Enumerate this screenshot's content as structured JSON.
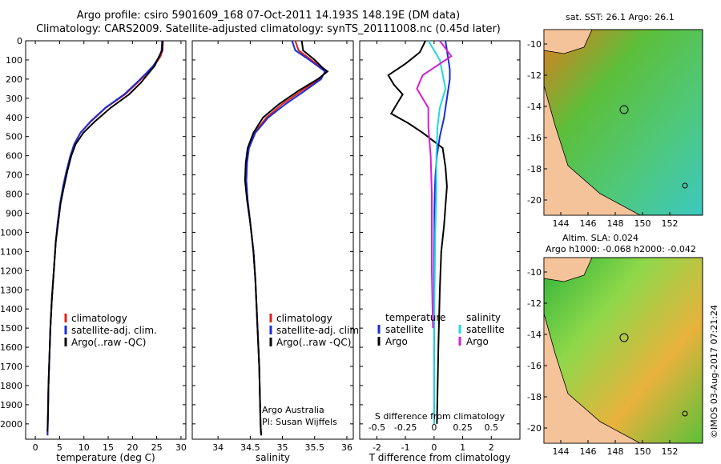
{
  "header": {
    "line1": "Argo profile: csiro 5901609_168 07-Oct-2011 14.193S 148.19E (DM data)",
    "line2": "Climatology: CARS2009. Satellite-adjusted climatology: synTS_20111008.nc (0.45d later)"
  },
  "colors": {
    "climatology": "#e0201a",
    "satellite": "#1c2bd8",
    "argo": "#000000",
    "satellite_diff": "#22d8e0",
    "argo_diff": "#d41fd4"
  },
  "chart_data": [
    {
      "type": "line",
      "id": "temperature",
      "xlabel": "temperature (deg C)",
      "ylabel": "",
      "xlim": [
        -2,
        31
      ],
      "ylim": [
        2080,
        0
      ],
      "xticks": [
        0,
        5,
        10,
        15,
        20,
        25,
        30
      ],
      "yticks": [
        0,
        100,
        200,
        300,
        400,
        500,
        600,
        700,
        800,
        900,
        1000,
        1100,
        1200,
        1300,
        1400,
        1500,
        1600,
        1700,
        1800,
        1900,
        2000
      ],
      "legend": [
        "climatology",
        "satellite-adj. clim.",
        "Argo(..raw -QC)"
      ],
      "series": [
        {
          "name": "climatology",
          "x": [
            26.3,
            26.2,
            25.8,
            24.5,
            23,
            21,
            18.5,
            14.5,
            11.5,
            9.3,
            8,
            7.3,
            6.5,
            5.8,
            5.1,
            4.6,
            4.2,
            3.8,
            3.4,
            3.1,
            2.9,
            2.7,
            2.6,
            2.5
          ],
          "y": [
            0,
            50,
            80,
            130,
            170,
            220,
            280,
            350,
            420,
            480,
            540,
            600,
            680,
            760,
            850,
            950,
            1050,
            1200,
            1350,
            1500,
            1650,
            1800,
            1950,
            2060
          ]
        },
        {
          "name": "satellite-adj. clim.",
          "x": [
            26.1,
            26,
            25.6,
            24.3,
            22.8,
            20.8,
            18.3,
            14.4,
            11.4,
            9.3,
            8,
            7.2,
            6.4,
            5.7,
            5.1,
            4.6,
            4.2,
            3.8,
            3.4,
            3.1,
            2.9,
            2.7,
            2.6,
            2.5
          ],
          "y": [
            0,
            50,
            80,
            130,
            170,
            220,
            280,
            350,
            420,
            480,
            540,
            600,
            680,
            760,
            850,
            950,
            1050,
            1200,
            1350,
            1500,
            1650,
            1800,
            1950,
            2060
          ]
        },
        {
          "name": "Argo(..raw -QC)",
          "x": [
            26.2,
            26.1,
            25.5,
            24.6,
            23.3,
            21.7,
            19.3,
            15.5,
            12.3,
            9.9,
            8.3,
            7.4,
            6.6,
            5.9,
            5.2,
            4.7,
            4.2,
            3.8,
            3.4,
            3.1,
            2.9,
            2.7,
            2.6,
            2.5
          ],
          "y": [
            0,
            50,
            80,
            130,
            170,
            220,
            280,
            350,
            420,
            480,
            540,
            600,
            680,
            760,
            850,
            950,
            1050,
            1200,
            1350,
            1500,
            1650,
            1800,
            1950,
            2040
          ]
        }
      ]
    },
    {
      "type": "line",
      "id": "salinity",
      "xlabel": "salinity",
      "ylabel": "",
      "xlim": [
        33.6,
        36.1
      ],
      "ylim": [
        2080,
        0
      ],
      "xticks": [
        34,
        34.5,
        35,
        35.5,
        36
      ],
      "yticks": [
        0,
        100,
        200,
        300,
        400,
        500,
        600,
        700,
        800,
        900,
        1000,
        1100,
        1200,
        1300,
        1400,
        1500,
        1600,
        1700,
        1800,
        1900,
        2000
      ],
      "legend": [
        "climatology",
        "satellite-adj. clim.",
        "Argo(..raw -QC)"
      ],
      "series": [
        {
          "name": "climatology",
          "x": [
            35.2,
            35.25,
            35.45,
            35.6,
            35.68,
            35.58,
            35.3,
            35,
            34.75,
            34.57,
            34.47,
            34.45,
            34.44,
            34.46,
            34.5,
            34.55,
            34.58,
            34.6,
            34.62,
            34.64,
            34.65,
            34.66,
            34.67
          ],
          "y": [
            0,
            50,
            100,
            140,
            160,
            200,
            260,
            330,
            400,
            480,
            560,
            640,
            730,
            830,
            950,
            1100,
            1250,
            1400,
            1550,
            1700,
            1850,
            2000,
            2060
          ]
        },
        {
          "name": "satellite-adj. clim.",
          "x": [
            35.15,
            35.2,
            35.42,
            35.58,
            35.66,
            35.6,
            35.35,
            35.05,
            34.78,
            34.58,
            34.48,
            34.45,
            34.44,
            34.46,
            34.5,
            34.55,
            34.58,
            34.6,
            34.62,
            34.64,
            34.65,
            34.66,
            34.67
          ],
          "y": [
            0,
            50,
            100,
            140,
            160,
            200,
            260,
            330,
            400,
            480,
            560,
            640,
            730,
            830,
            950,
            1100,
            1250,
            1400,
            1550,
            1700,
            1850,
            2000,
            2060
          ]
        },
        {
          "name": "Argo(..raw -QC)",
          "x": [
            35.3,
            35.32,
            35.5,
            35.62,
            35.7,
            35.55,
            35.25,
            34.95,
            34.7,
            34.55,
            34.46,
            34.43,
            34.42,
            34.45,
            34.5,
            34.55,
            34.58,
            34.6,
            34.62,
            34.64,
            34.65,
            34.66,
            34.67
          ],
          "y": [
            0,
            50,
            100,
            140,
            160,
            200,
            260,
            330,
            400,
            480,
            560,
            640,
            730,
            830,
            950,
            1100,
            1250,
            1400,
            1550,
            1700,
            1850,
            2000,
            2060
          ]
        }
      ],
      "annotations": [
        "Argo Australia",
        "PI: Susan Wijffels"
      ]
    },
    {
      "type": "line",
      "id": "difference",
      "xlabel": "T difference from climatology",
      "top_label": "S difference from climatology",
      "xlim": [
        -2.6,
        3
      ],
      "ylim": [
        2080,
        0
      ],
      "xticks": [
        -2,
        -1,
        0,
        1,
        2
      ],
      "top_ticks": [
        "-0.5",
        "-0.25",
        "0",
        "0.25",
        "0.5"
      ],
      "yticks": [
        0,
        100,
        200,
        300,
        400,
        500,
        600,
        700,
        800,
        900,
        1000,
        1100,
        1200,
        1300,
        1400,
        1500,
        1600,
        1700,
        1800,
        1900,
        2000
      ],
      "legend_headers": [
        "temperature",
        "salinity"
      ],
      "legend": [
        "satellite",
        "Argo",
        "satellite",
        "Argo"
      ],
      "series": [
        {
          "name": "T satellite",
          "x": [
            0.4,
            0.45,
            0.5,
            0.55,
            0.55,
            0.5,
            0.45,
            0.4,
            0.35,
            0.2,
            0.1,
            0.05,
            0.02,
            0.01,
            0.01,
            0,
            0,
            0,
            0
          ],
          "y": [
            0,
            50,
            100,
            150,
            200,
            250,
            300,
            350,
            400,
            500,
            600,
            700,
            800,
            900,
            1000,
            1200,
            1400,
            1700,
            2000
          ]
        },
        {
          "name": "T Argo",
          "x": [
            -0.3,
            -0.5,
            -1,
            -1.6,
            -1.4,
            -1.1,
            -1.3,
            -1.5,
            -0.9,
            -0.4,
            0.3,
            0.4,
            0.45,
            0.4,
            0.35,
            0.25,
            0.2,
            0.15,
            0.1
          ],
          "y": [
            0,
            60,
            120,
            180,
            230,
            280,
            330,
            380,
            430,
            480,
            560,
            660,
            760,
            860,
            960,
            1100,
            1300,
            1600,
            2000
          ]
        },
        {
          "name": "S satellite",
          "x": [
            -0.05,
            0.05,
            0.1,
            0.05,
            0.03,
            0.02,
            0.02,
            0.01,
            0,
            0
          ],
          "y": [
            0,
            100,
            250,
            350,
            450,
            600,
            800,
            1000,
            1500,
            2000
          ]
        },
        {
          "name": "S Argo",
          "x": [
            0.05,
            0.15,
            -0.1,
            -0.15,
            -0.05,
            -0.05,
            -0.03,
            -0.02,
            -0.02,
            -0.01
          ],
          "y": [
            0,
            80,
            180,
            250,
            350,
            450,
            600,
            800,
            1200,
            1500
          ]
        }
      ]
    }
  ],
  "maps": [
    {
      "id": "sst",
      "title": "sat. SST: 26.1  Argo: 26.1",
      "xticks": [
        "144",
        "146",
        "148",
        "150",
        "152"
      ],
      "yticks": [
        "-10",
        "-12",
        "-14",
        "-16",
        "-18",
        "-20"
      ]
    },
    {
      "id": "sla",
      "title_line1": "Altim. SLA: 0.024",
      "title_line2": "Argo h1000: -0.068 h2000: -0.042",
      "xticks": [
        "144",
        "146",
        "148",
        "150",
        "152"
      ],
      "yticks": [
        "-10",
        "-12",
        "-14",
        "-16",
        "-18",
        "-20"
      ]
    }
  ],
  "credit": "©IMOS 03-Aug-2017 07:21:24"
}
